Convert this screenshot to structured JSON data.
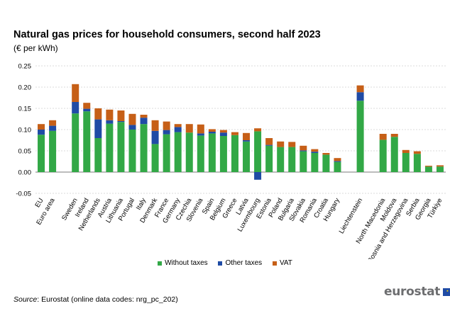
{
  "header": {
    "title": "Natural gas prices for household consumers, second half 2023",
    "subtitle": "(€ per kWh)"
  },
  "legend": {
    "items": [
      {
        "label": "Without taxes",
        "color": "#32a846"
      },
      {
        "label": "Other taxes",
        "color": "#1f4ba5"
      },
      {
        "label": "VAT",
        "color": "#c65f17"
      }
    ]
  },
  "footer": {
    "source_label": "Source",
    "source_text": ": Eurostat (online data codes: nrg_pc_202)",
    "logo_text": "eurostat"
  },
  "chart_data": {
    "type": "bar",
    "stacked": true,
    "ylim": [
      -0.05,
      0.25
    ],
    "yticks": [
      "0.25",
      "0.20",
      "0.15",
      "0.10",
      "0.05",
      "0.00",
      "-0.05"
    ],
    "grid": true,
    "legend_position": "bottom",
    "categories": [
      "EU",
      "Euro area",
      "",
      "Sweden",
      "Ireland",
      "Netherlands",
      "Austria",
      "Lithuania",
      "Portugal",
      "Italy",
      "Denmark",
      "France",
      "Germany",
      "Czechia",
      "Slovenia",
      "Spain",
      "Belgium",
      "Greece",
      "Latvia",
      "Luxembourg",
      "Estonia",
      "Poland",
      "Bulgaria",
      "Slovakia",
      "Romania",
      "Croatia",
      "Hungary",
      "",
      "Liechtenstein",
      "",
      "North Macedonia",
      "Moldova",
      "Bosnia and Herzegovina",
      "Serbia",
      "Georgia",
      "Türkiye"
    ],
    "series": [
      {
        "name": "Without taxes",
        "color": "#32a846",
        "values": [
          0.088,
          0.097,
          null,
          0.138,
          0.143,
          0.08,
          0.114,
          0.118,
          0.1,
          0.113,
          0.066,
          0.089,
          0.094,
          0.093,
          0.086,
          0.091,
          0.085,
          0.087,
          0.072,
          0.096,
          0.062,
          0.059,
          0.059,
          0.049,
          0.045,
          0.041,
          0.024,
          null,
          0.168,
          null,
          0.076,
          0.083,
          0.045,
          0.043,
          0.013,
          0.013
        ]
      },
      {
        "name": "Other taxes",
        "color": "#1f4ba5",
        "values": [
          0.012,
          0.012,
          null,
          0.027,
          0.006,
          0.044,
          0.008,
          0.002,
          0.011,
          0.015,
          0.031,
          0.01,
          0.012,
          0.0,
          0.005,
          0.004,
          0.008,
          0.0,
          0.003,
          -0.018,
          0.002,
          0.0,
          0.0,
          0.002,
          0.003,
          0.0,
          0.002,
          null,
          0.02,
          null,
          0.0,
          0.0,
          0.0,
          0.0,
          0.0,
          0.0
        ]
      },
      {
        "name": "VAT",
        "color": "#c65f17",
        "values": [
          0.013,
          0.013,
          null,
          0.042,
          0.014,
          0.026,
          0.025,
          0.025,
          0.026,
          0.007,
          0.025,
          0.02,
          0.007,
          0.02,
          0.021,
          0.006,
          0.006,
          0.007,
          0.017,
          0.007,
          0.016,
          0.013,
          0.012,
          0.011,
          0.006,
          0.004,
          0.007,
          null,
          0.016,
          null,
          0.014,
          0.007,
          0.007,
          0.006,
          0.002,
          0.003
        ]
      }
    ]
  }
}
